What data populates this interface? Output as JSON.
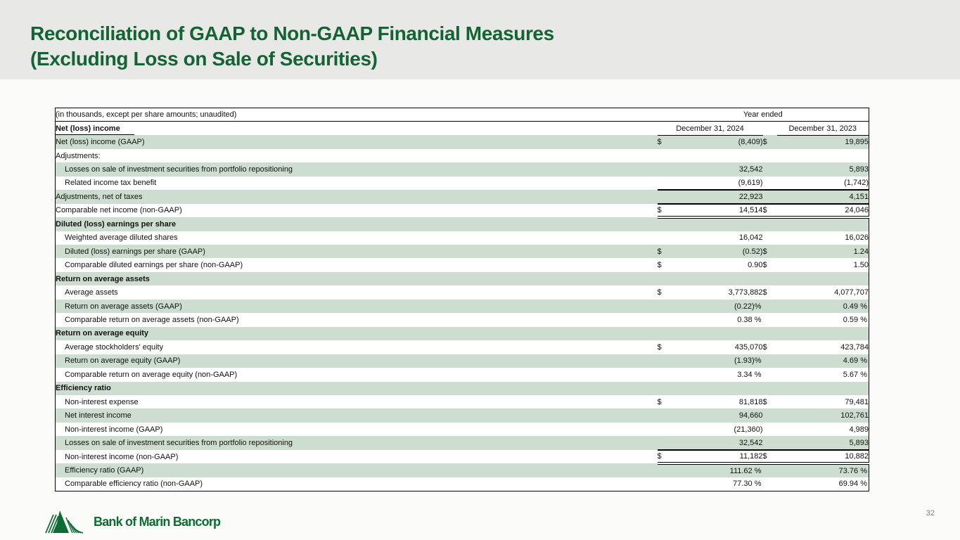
{
  "slide": {
    "title_line1": "Reconciliation of GAAP to Non-GAAP Financial Measures",
    "title_line2": "(Excluding Loss on Sale of Securities)",
    "page_number": "32",
    "logo_text": "Bank of Marin Bancorp",
    "colors": {
      "title_green": "#136335",
      "row_green": "#cdddd0",
      "band_gray": "#e8e8e6",
      "logo_green": "#0d6b33"
    }
  },
  "table": {
    "note": "(in thousands, except per share amounts; unaudited)",
    "year_ended_label": "Year ended",
    "col_2024": "December 31, 2024",
    "col_2023": "December 31, 2023",
    "section1_label": "Net (loss) income",
    "rows": [
      {
        "label": "Net (loss) income (GAAP)",
        "indent": false,
        "bold": false,
        "d1": "$",
        "v1": "(8,409)",
        "d2": "$",
        "v2": "19,895",
        "top_border": false,
        "double_bottom": false
      },
      {
        "label": "Adjustments:",
        "indent": false,
        "bold": false,
        "d1": "",
        "v1": "",
        "d2": "",
        "v2": "",
        "top_border": false,
        "double_bottom": false
      },
      {
        "label": "Losses on sale of investment securities from portfolio repositioning",
        "indent": true,
        "bold": false,
        "d1": "",
        "v1": "32,542",
        "d2": "",
        "v2": "5,893",
        "top_border": false,
        "double_bottom": false
      },
      {
        "label": "Related income tax benefit",
        "indent": true,
        "bold": false,
        "d1": "",
        "v1": "(9,619)",
        "d2": "",
        "v2": "(1,742)",
        "top_border": false,
        "double_bottom": false
      },
      {
        "label": "Adjustments, net of taxes",
        "indent": false,
        "bold": false,
        "d1": "",
        "v1": "22,923",
        "d2": "",
        "v2": "4,151",
        "top_border": true,
        "double_bottom": false
      },
      {
        "label": "Comparable net income (non-GAAP)",
        "indent": false,
        "bold": false,
        "d1": "$",
        "v1": "14,514",
        "d2": "$",
        "v2": "24,046",
        "top_border": true,
        "double_bottom": true
      },
      {
        "label": "Diluted (loss) earnings per share",
        "indent": false,
        "bold": true,
        "d1": "",
        "v1": "",
        "d2": "",
        "v2": "",
        "top_border": false,
        "double_bottom": false
      },
      {
        "label": "Weighted average diluted shares",
        "indent": true,
        "bold": false,
        "d1": "",
        "v1": "16,042",
        "d2": "",
        "v2": "16,026",
        "top_border": false,
        "double_bottom": false
      },
      {
        "label": "Diluted (loss) earnings per share (GAAP)",
        "indent": true,
        "bold": false,
        "d1": "$",
        "v1": "(0.52)",
        "d2": "$",
        "v2": "1.24",
        "top_border": false,
        "double_bottom": false
      },
      {
        "label": "Comparable diluted earnings per share (non-GAAP)",
        "indent": true,
        "bold": false,
        "d1": "$",
        "v1": "0.90",
        "d2": "$",
        "v2": "1.50",
        "top_border": false,
        "double_bottom": false
      },
      {
        "label": "Return on average assets",
        "indent": false,
        "bold": true,
        "d1": "",
        "v1": "",
        "d2": "",
        "v2": "",
        "top_border": false,
        "double_bottom": false
      },
      {
        "label": "Average assets",
        "indent": true,
        "bold": false,
        "d1": "$",
        "v1": "3,773,882",
        "d2": "$",
        "v2": "4,077,707",
        "top_border": false,
        "double_bottom": false
      },
      {
        "label": "Return on average assets (GAAP)",
        "indent": true,
        "bold": false,
        "d1": "",
        "v1": "(0.22)%",
        "d2": "",
        "v2": "0.49 %",
        "top_border": false,
        "double_bottom": false
      },
      {
        "label": "Comparable return on average assets (non-GAAP)",
        "indent": true,
        "bold": false,
        "d1": "",
        "v1": "0.38 %",
        "d2": "",
        "v2": "0.59 %",
        "top_border": false,
        "double_bottom": false
      },
      {
        "label": "Return on average equity",
        "indent": false,
        "bold": true,
        "d1": "",
        "v1": "",
        "d2": "",
        "v2": "",
        "top_border": false,
        "double_bottom": false
      },
      {
        "label": "Average stockholders' equity",
        "indent": true,
        "bold": false,
        "d1": "$",
        "v1": "435,070",
        "d2": "$",
        "v2": "423,784",
        "top_border": false,
        "double_bottom": false
      },
      {
        "label": "Return on average equity (GAAP)",
        "indent": true,
        "bold": false,
        "d1": "",
        "v1": "(1.93)%",
        "d2": "",
        "v2": "4.69 %",
        "top_border": false,
        "double_bottom": false
      },
      {
        "label": "Comparable return on average equity (non-GAAP)",
        "indent": true,
        "bold": false,
        "d1": "",
        "v1": "3.34 %",
        "d2": "",
        "v2": "5.67 %",
        "top_border": false,
        "double_bottom": false
      },
      {
        "label": "Efficiency ratio",
        "indent": false,
        "bold": true,
        "d1": "",
        "v1": "",
        "d2": "",
        "v2": "",
        "top_border": false,
        "double_bottom": false
      },
      {
        "label": "Non-interest expense",
        "indent": true,
        "bold": false,
        "d1": "$",
        "v1": "81,818",
        "d2": "$",
        "v2": "79,481",
        "top_border": false,
        "double_bottom": false
      },
      {
        "label": "Net interest income",
        "indent": true,
        "bold": false,
        "d1": "",
        "v1": "94,660",
        "d2": "",
        "v2": "102,761",
        "top_border": false,
        "double_bottom": false
      },
      {
        "label": "Non-interest income (GAAP)",
        "indent": true,
        "bold": false,
        "d1": "",
        "v1": "(21,360)",
        "d2": "",
        "v2": "4,989",
        "top_border": false,
        "double_bottom": false
      },
      {
        "label": "Losses on sale of investment securities from portfolio repositioning",
        "indent": true,
        "bold": false,
        "d1": "",
        "v1": "32,542",
        "d2": "",
        "v2": "5,893",
        "top_border": false,
        "double_bottom": false
      },
      {
        "label": "Non-interest income (non-GAAP)",
        "indent": true,
        "bold": false,
        "d1": "$",
        "v1": "11,182",
        "d2": "$",
        "v2": "10,882",
        "top_border": true,
        "double_bottom": true
      },
      {
        "label": "Efficiency ratio (GAAP)",
        "indent": true,
        "bold": false,
        "d1": "",
        "v1": "111.62 %",
        "d2": "",
        "v2": "73.76 %",
        "top_border": false,
        "double_bottom": false
      },
      {
        "label": "Comparable efficiency ratio (non-GAAP)",
        "indent": true,
        "bold": false,
        "d1": "",
        "v1": "77.30 %",
        "d2": "",
        "v2": "69.94 %",
        "top_border": false,
        "double_bottom": false
      }
    ]
  }
}
